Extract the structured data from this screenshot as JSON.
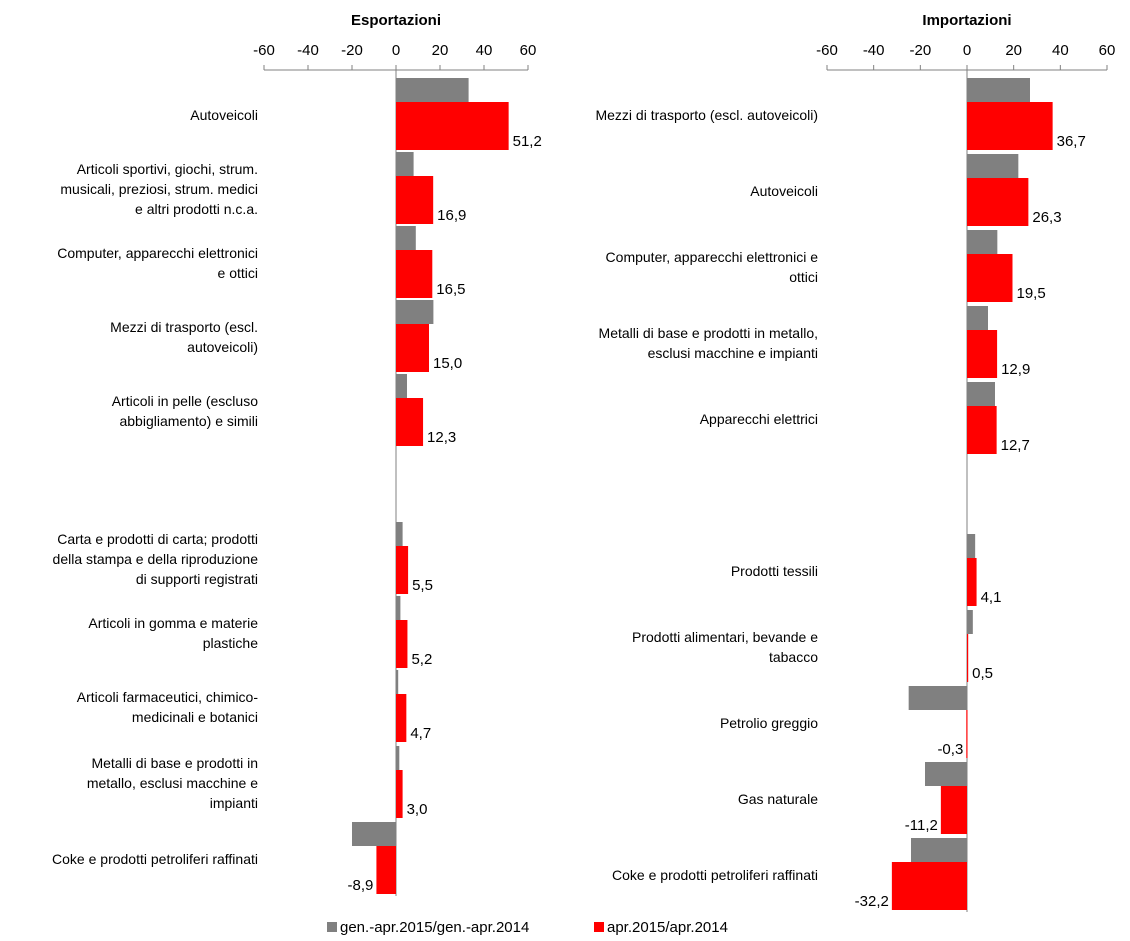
{
  "colors": {
    "gray": "#808080",
    "red": "#ff0000",
    "axis": "#808080"
  },
  "legend": [
    {
      "name": "gen.-apr.2015/gen.-apr.2014",
      "color": "#808080"
    },
    {
      "name": "apr.2015/apr.2014",
      "color": "#ff0000"
    }
  ],
  "chart_data": [
    {
      "type": "bar",
      "orientation": "horizontal",
      "title": "Esportazioni",
      "xlim": [
        -60,
        60
      ],
      "xticks": [
        "-60",
        "-40",
        "-20",
        "0",
        "20",
        "40",
        "60"
      ],
      "categories": [
        [
          "Autoveicoli"
        ],
        [
          "Articoli sportivi, giochi, strum.",
          "musicali, preziosi, strum. medici",
          "e altri prodotti n.c.a."
        ],
        [
          "Computer, apparecchi elettronici",
          "e ottici"
        ],
        [
          "Mezzi di trasporto (escl.",
          "autoveicoli)"
        ],
        [
          "Articoli in pelle (escluso",
          "abbigliamento) e simili"
        ],
        [
          "Carta e prodotti di carta; prodotti",
          "della stampa e della riproduzione",
          "di supporti registrati"
        ],
        [
          "Articoli in gomma e materie",
          "plastiche"
        ],
        [
          "Articoli farmaceutici, chimico-",
          "medicinali e botanici"
        ],
        [
          "Metalli di base e prodotti in",
          "metallo, esclusi macchine e",
          "impianti"
        ],
        [
          "Coke e prodotti petroliferi raffinati"
        ]
      ],
      "series": [
        {
          "name": "gen.-apr.2015/gen.-apr.2014",
          "values": [
            33,
            8,
            9,
            17,
            5,
            3,
            2,
            1,
            1.5,
            -20
          ]
        },
        {
          "name": "apr.2015/apr.2014",
          "values": [
            51.2,
            16.9,
            16.5,
            15.0,
            12.3,
            5.5,
            5.2,
            4.7,
            3.0,
            -8.9
          ],
          "labels": [
            "51,2",
            "16,9",
            "16,5",
            "15,0",
            "12,3",
            "5,5",
            "5,2",
            "4,7",
            "3,0",
            "-8,9"
          ]
        }
      ]
    },
    {
      "type": "bar",
      "orientation": "horizontal",
      "title": "Importazioni",
      "xlim": [
        -60,
        60
      ],
      "xticks": [
        "-60",
        "-40",
        "-20",
        "0",
        "20",
        "40",
        "60"
      ],
      "categories": [
        [
          "Mezzi di trasporto (escl. autoveicoli)"
        ],
        [
          "Autoveicoli"
        ],
        [
          "Computer, apparecchi elettronici e",
          "ottici"
        ],
        [
          "Metalli di base e prodotti in metallo,",
          "esclusi macchine e impianti"
        ],
        [
          "Apparecchi elettrici"
        ],
        [
          "Prodotti tessili"
        ],
        [
          "Prodotti alimentari, bevande e",
          "tabacco"
        ],
        [
          "Petrolio greggio"
        ],
        [
          "Gas naturale"
        ],
        [
          "Coke e prodotti petroliferi raffinati"
        ]
      ],
      "series": [
        {
          "name": "gen.-apr.2015/gen.-apr.2014",
          "values": [
            27,
            22,
            13,
            9,
            12,
            3.5,
            2.5,
            -25,
            -18,
            -24
          ]
        },
        {
          "name": "apr.2015/apr.2014",
          "values": [
            36.7,
            26.3,
            19.5,
            12.9,
            12.7,
            4.1,
            0.5,
            -0.3,
            -11.2,
            -32.2
          ],
          "labels": [
            "36,7",
            "26,3",
            "19,5",
            "12,9",
            "12,7",
            "4,1",
            "0,5",
            "-0,3",
            "-11,2",
            "-32,2"
          ]
        }
      ]
    }
  ]
}
